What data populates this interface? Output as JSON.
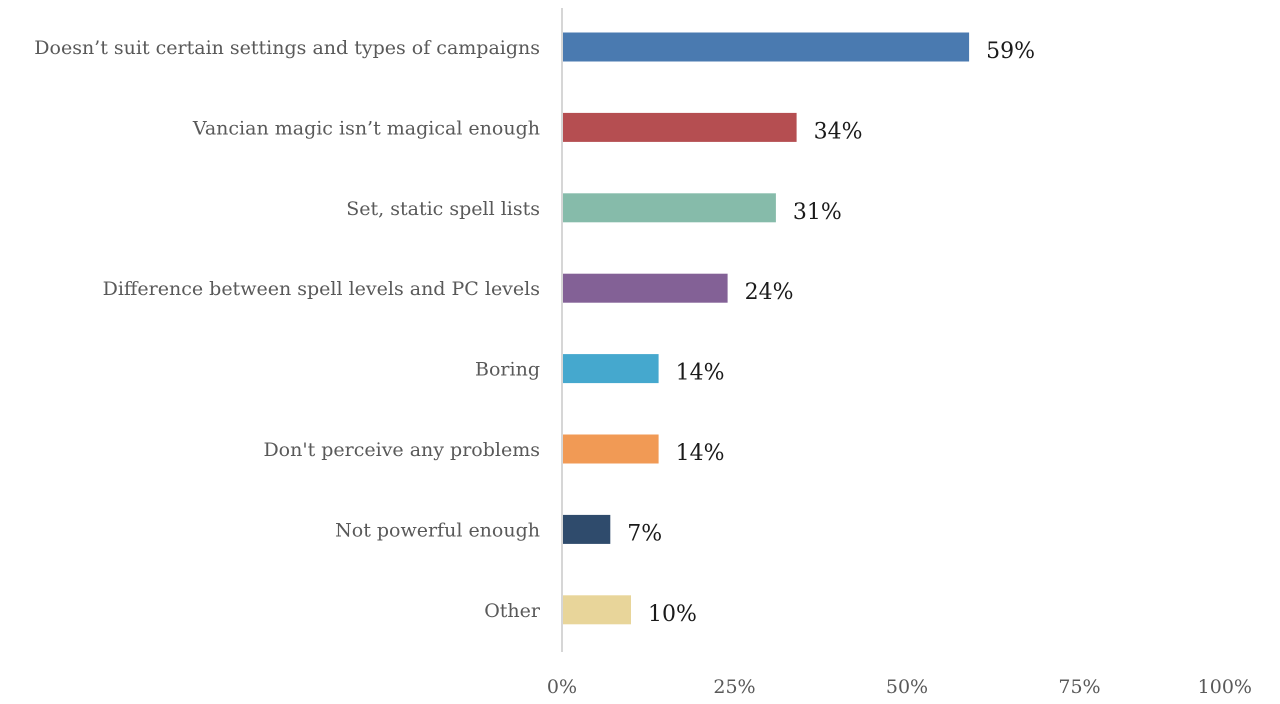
{
  "chart_data": {
    "type": "bar",
    "orientation": "horizontal",
    "categories": [
      "Doesn’t suit certain settings and types of campaigns",
      "Vancian magic isn’t magical enough",
      "Set, static spell lists",
      "Difference between spell levels and PC levels",
      "Boring",
      "Don't perceive any problems",
      "Not powerful enough",
      "Other"
    ],
    "values": [
      59,
      34,
      31,
      24,
      14,
      14,
      7,
      10
    ],
    "value_labels": [
      "59%",
      "34%",
      "31%",
      "24%",
      "14%",
      "14%",
      "7%",
      "10%"
    ],
    "colors": [
      "#4A7AB0",
      "#B54E51",
      "#86BBAA",
      "#836196",
      "#45A8CE",
      "#F19A55",
      "#2F4B6C",
      "#E8D59A"
    ],
    "xlim": [
      0,
      100
    ],
    "x_ticks": [
      0,
      25,
      50,
      75,
      100
    ],
    "x_tick_labels": [
      "0%",
      "25%",
      "50%",
      "75%",
      "100%"
    ],
    "grid": false,
    "title": "",
    "xlabel": "",
    "ylabel": ""
  }
}
